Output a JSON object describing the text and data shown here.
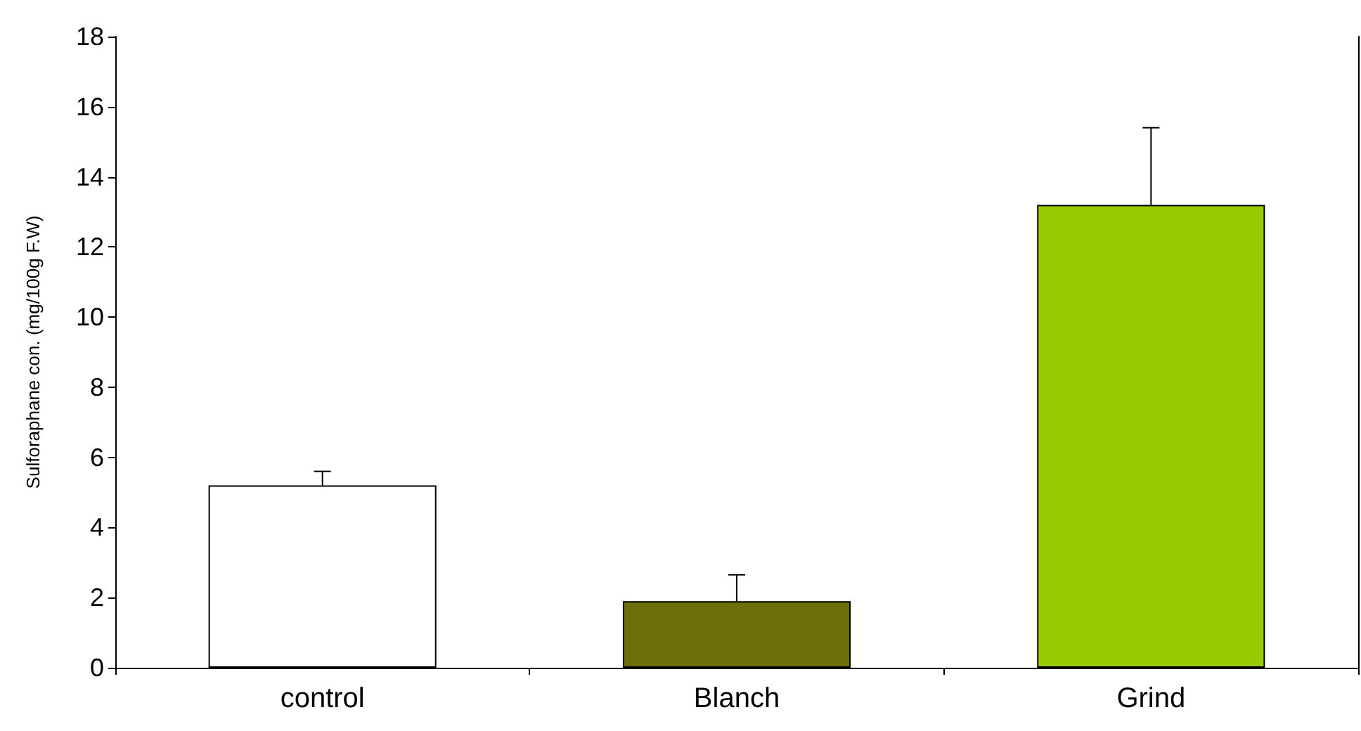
{
  "chart_data": {
    "type": "bar",
    "ylabel": "Sulforaphane con. (mg/100g F.W)",
    "categories": [
      "control",
      "Blanch",
      "Grind"
    ],
    "values": [
      5.2,
      1.9,
      13.2
    ],
    "colors": [
      "#ffffff",
      "#6e6e0a",
      "#99cc00"
    ],
    "errors": [
      [
        5.2,
        5.6
      ],
      [
        1.9,
        2.65
      ],
      [
        13.2,
        15.4
      ]
    ],
    "ylim": [
      0,
      18
    ],
    "yticks": [
      0,
      2,
      4,
      6,
      8,
      10,
      12,
      14,
      16,
      18
    ],
    "grid": false
  }
}
